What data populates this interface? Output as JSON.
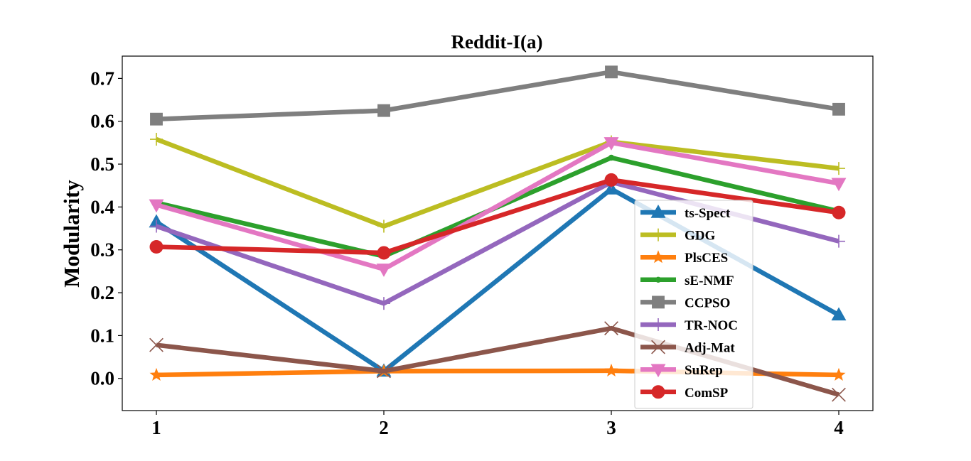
{
  "chart_data": {
    "type": "line",
    "title": "Reddit-I(a)",
    "xlabel": "",
    "ylabel": "Modularity",
    "x": [
      1,
      2,
      3,
      4
    ],
    "x_tick_labels": [
      "1",
      "2",
      "3",
      "4"
    ],
    "y_ticks": [
      0.0,
      0.1,
      0.2,
      0.3,
      0.4,
      0.5,
      0.6,
      0.7
    ],
    "y_tick_labels": [
      "0.0",
      "0.1",
      "0.2",
      "0.3",
      "0.4",
      "0.5",
      "0.6",
      "0.7"
    ],
    "xlim": [
      0.85,
      4.15
    ],
    "ylim": [
      -0.075,
      0.752
    ],
    "grid": false,
    "legend_position": "center-right",
    "series": [
      {
        "name": "ts-Spect",
        "values": [
          0.365,
          0.017,
          0.442,
          0.148
        ],
        "color": "#1f77b4",
        "marker": "triangle"
      },
      {
        "name": "GDG",
        "values": [
          0.558,
          0.355,
          0.552,
          0.49
        ],
        "color": "#bcbd22",
        "marker": "plus"
      },
      {
        "name": "PlsCES",
        "values": [
          0.008,
          0.017,
          0.018,
          0.008
        ],
        "color": "#ff7f0e",
        "marker": "star"
      },
      {
        "name": "sE-NMF",
        "values": [
          0.41,
          0.285,
          0.515,
          0.39
        ],
        "color": "#2ca02c",
        "marker": "dot"
      },
      {
        "name": "CCPSO",
        "values": [
          0.605,
          0.625,
          0.715,
          0.628
        ],
        "color": "#7f7f7f",
        "marker": "square"
      },
      {
        "name": "TR-NOC",
        "values": [
          0.355,
          0.175,
          0.458,
          0.32
        ],
        "color": "#9467bd",
        "marker": "plus"
      },
      {
        "name": "Adj-Mat",
        "values": [
          0.078,
          0.017,
          0.117,
          -0.038
        ],
        "color": "#8c564b",
        "marker": "x"
      },
      {
        "name": "SuRep",
        "values": [
          0.405,
          0.255,
          0.55,
          0.455
        ],
        "color": "#e377c2",
        "marker": "triangle-down"
      },
      {
        "name": "ComSP",
        "values": [
          0.307,
          0.293,
          0.463,
          0.387
        ],
        "color": "#d62728",
        "marker": "circle"
      }
    ]
  }
}
